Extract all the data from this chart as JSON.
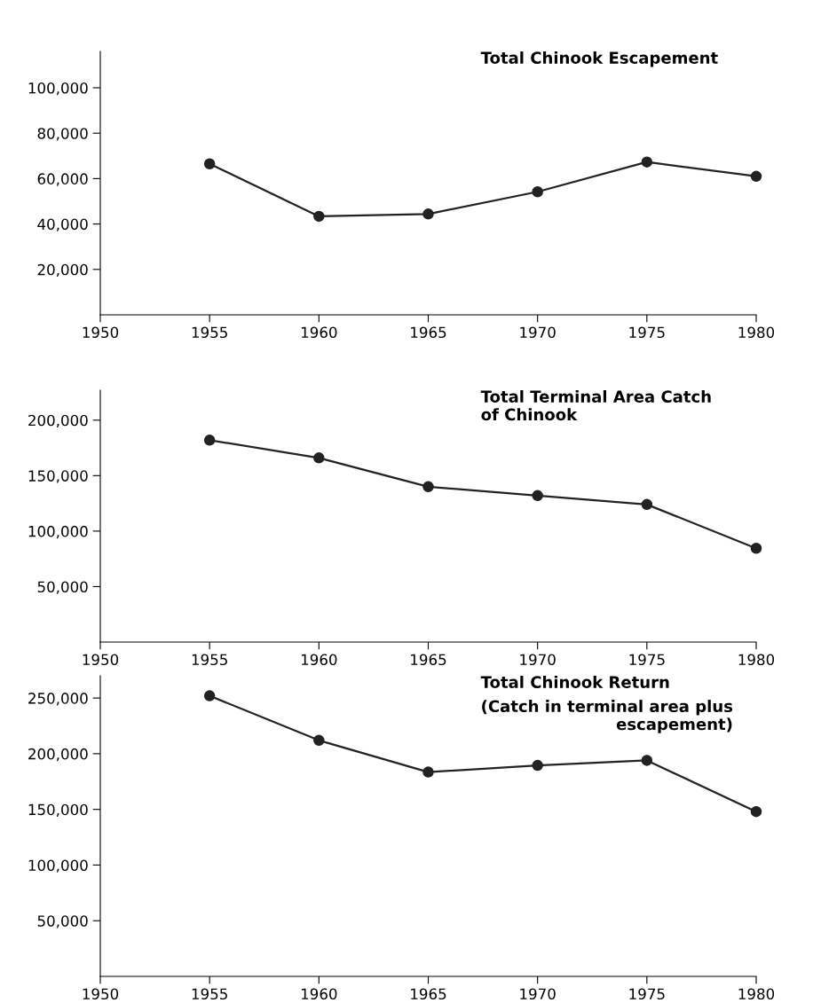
{
  "chart_data": [
    {
      "type": "line",
      "title": "Total Chinook Escapement",
      "x": [
        1955,
        1960,
        1965,
        1970,
        1975,
        1980
      ],
      "series": [
        {
          "color": "#222222",
          "values": [
            66500,
            43400,
            44400,
            54200,
            67300,
            61000
          ]
        }
      ],
      "xlim": [
        1950,
        1980
      ],
      "xticks": [
        1950,
        1955,
        1960,
        1965,
        1970,
        1975,
        1980
      ],
      "ylim": [
        0,
        116000
      ],
      "yticks": [
        {
          "value": 20000,
          "label": "20,000"
        },
        {
          "value": 40000,
          "label": "40,000"
        },
        {
          "value": 60000,
          "label": "60,000"
        },
        {
          "value": 80000,
          "label": "80,000"
        },
        {
          "value": 100000,
          "label": "100,000"
        }
      ],
      "grid": false,
      "marker": "circle",
      "line_style": "solid"
    },
    {
      "type": "line",
      "title": "Total Terminal Area Catch\nof Chinook",
      "x": [
        1955,
        1960,
        1965,
        1970,
        1975,
        1980
      ],
      "series": [
        {
          "color": "#222222",
          "values": [
            182000,
            166000,
            140000,
            132000,
            124000,
            84500
          ]
        }
      ],
      "xlim": [
        1950,
        1980
      ],
      "xticks": [
        1950,
        1955,
        1960,
        1965,
        1970,
        1975,
        1980
      ],
      "ylim": [
        0,
        227000
      ],
      "yticks": [
        {
          "value": 50000,
          "label": "50,000"
        },
        {
          "value": 100000,
          "label": "100,000"
        },
        {
          "value": 150000,
          "label": "150,000"
        },
        {
          "value": 200000,
          "label": "200,000"
        }
      ],
      "grid": false,
      "marker": "circle",
      "line_style": "solid"
    },
    {
      "type": "line",
      "title": "Total Chinook Return",
      "subtitle": "(Catch in terminal area plus\nescapement)",
      "x": [
        1955,
        1960,
        1965,
        1970,
        1975,
        1980
      ],
      "series": [
        {
          "color": "#222222",
          "values": [
            252000,
            212000,
            183500,
            189500,
            194000,
            148000
          ]
        }
      ],
      "xlim": [
        1950,
        1980
      ],
      "xticks": [
        1950,
        1955,
        1960,
        1965,
        1970,
        1975,
        1980
      ],
      "ylim": [
        0,
        270000
      ],
      "yticks": [
        {
          "value": 50000,
          "label": "50,000"
        },
        {
          "value": 100000,
          "label": "100,000"
        },
        {
          "value": 150000,
          "label": "150,000"
        },
        {
          "value": 200000,
          "label": "200,000"
        },
        {
          "value": 250000,
          "label": "250,000"
        }
      ],
      "grid": false,
      "marker": "circle",
      "line_style": "solid"
    }
  ]
}
